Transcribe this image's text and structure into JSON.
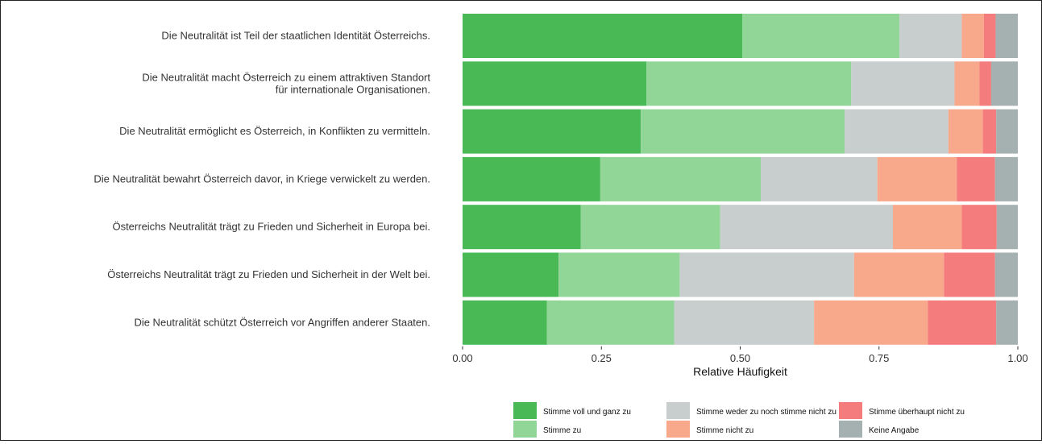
{
  "chart_data": {
    "type": "bar",
    "orientation": "horizontal",
    "stacked": true,
    "categories": [
      "Die Neutralität ist Teil der staatlichen Identität Österreichs.",
      "Die Neutralität macht Österreich zu einem attraktiven Standort\nfür internationale Organisationen.",
      "Die Neutralität ermöglicht es Österreich, in Konflikten zu vermitteln.",
      "Die Neutralität bewahrt Österreich davor, in Kriege verwickelt zu werden.",
      "Österreichs Neutralität trägt zu Frieden und Sicherheit in Europa bei.",
      "Österreichs Neutralität trägt zu Frieden und Sicherheit in der Welt bei.",
      "Die Neutralität schützt Österreich vor Angriffen anderer Staaten."
    ],
    "series": [
      {
        "name": "Stimme voll und ganz zu",
        "color": "#49b956",
        "values": [
          0.504,
          0.331,
          0.321,
          0.248,
          0.213,
          0.173,
          0.152
        ]
      },
      {
        "name": "Stimme zu",
        "color": "#91d597",
        "values": [
          0.283,
          0.369,
          0.367,
          0.289,
          0.251,
          0.218,
          0.229
        ]
      },
      {
        "name": "Stimme weder zu noch stimme nicht zu",
        "color": "#c8cdcd",
        "values": [
          0.112,
          0.186,
          0.187,
          0.21,
          0.311,
          0.314,
          0.252
        ]
      },
      {
        "name": "Stimme nicht zu",
        "color": "#f8a98c",
        "values": [
          0.04,
          0.045,
          0.062,
          0.143,
          0.124,
          0.162,
          0.205
        ]
      },
      {
        "name": "Stimme überhaupt nicht zu",
        "color": "#f47c7c",
        "values": [
          0.021,
          0.021,
          0.024,
          0.069,
          0.063,
          0.092,
          0.123
        ]
      },
      {
        "name": "Keine Angabe",
        "color": "#a5b0b0",
        "values": [
          0.04,
          0.048,
          0.039,
          0.041,
          0.038,
          0.041,
          0.039
        ]
      }
    ],
    "xlabel": "Relative Häufigkeit",
    "xlim": [
      0,
      1
    ],
    "xticks": [
      "0.00",
      "0.25",
      "0.50",
      "0.75",
      "1.00"
    ],
    "legend_position": "bottom"
  }
}
